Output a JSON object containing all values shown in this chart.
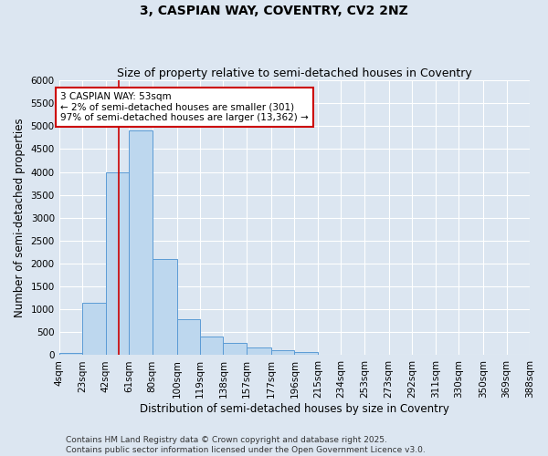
{
  "title": "3, CASPIAN WAY, COVENTRY, CV2 2NZ",
  "subtitle": "Size of property relative to semi-detached houses in Coventry",
  "xlabel": "Distribution of semi-detached houses by size in Coventry",
  "ylabel": "Number of semi-detached properties",
  "annotation_title": "3 CASPIAN WAY: 53sqm",
  "annotation_line1": "← 2% of semi-detached houses are smaller (301)",
  "annotation_line2": "97% of semi-detached houses are larger (13,362) →",
  "bin_edges": [
    4,
    23,
    42,
    61,
    80,
    100,
    119,
    138,
    157,
    177,
    196,
    215,
    234,
    253,
    273,
    292,
    311,
    330,
    350,
    369,
    388
  ],
  "bin_counts": [
    50,
    1150,
    4000,
    4900,
    2100,
    780,
    400,
    270,
    160,
    100,
    60,
    0,
    0,
    0,
    0,
    0,
    0,
    0,
    0,
    0
  ],
  "bar_color": "#bdd7ee",
  "bar_edge_color": "#5b9bd5",
  "vline_color": "#cc0000",
  "vline_x": 53,
  "annotation_box_color": "#cc0000",
  "background_color": "#dce6f1",
  "grid_color": "#ffffff",
  "ylim": [
    0,
    6000
  ],
  "yticks": [
    0,
    500,
    1000,
    1500,
    2000,
    2500,
    3000,
    3500,
    4000,
    4500,
    5000,
    5500,
    6000
  ],
  "tick_labels": [
    "4sqm",
    "23sqm",
    "42sqm",
    "61sqm",
    "80sqm",
    "100sqm",
    "119sqm",
    "138sqm",
    "157sqm",
    "177sqm",
    "196sqm",
    "215sqm",
    "234sqm",
    "253sqm",
    "273sqm",
    "292sqm",
    "311sqm",
    "330sqm",
    "350sqm",
    "369sqm",
    "388sqm"
  ],
  "footer_line1": "Contains HM Land Registry data © Crown copyright and database right 2025.",
  "footer_line2": "Contains public sector information licensed under the Open Government Licence v3.0.",
  "title_fontsize": 10,
  "subtitle_fontsize": 9,
  "axis_label_fontsize": 8.5,
  "tick_fontsize": 7.5,
  "annotation_fontsize": 7.5,
  "footer_fontsize": 6.5
}
